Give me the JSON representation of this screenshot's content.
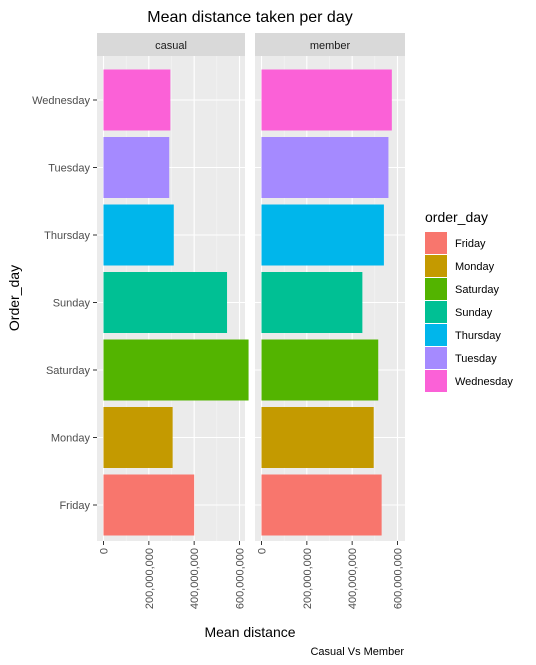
{
  "chart_data": {
    "type": "bar",
    "orientation": "horizontal",
    "title": "Mean distance taken per day",
    "xlabel": "Mean distance",
    "ylabel": "Order_day",
    "caption": "Casual Vs Member",
    "xlim": [
      0,
      650000000
    ],
    "x_ticks": [
      0,
      200000000,
      400000000,
      600000000
    ],
    "x_tick_labels": [
      "0",
      "200,000,000",
      "400,000,000",
      "600,000,000"
    ],
    "categories": [
      "Friday",
      "Monday",
      "Saturday",
      "Sunday",
      "Thursday",
      "Tuesday",
      "Wednesday"
    ],
    "facets": [
      {
        "name": "casual",
        "values": {
          "Friday": 400000000,
          "Monday": 305000000,
          "Saturday": 640000000,
          "Sunday": 545000000,
          "Thursday": 310000000,
          "Tuesday": 290000000,
          "Wednesday": 295000000
        }
      },
      {
        "name": "member",
        "values": {
          "Friday": 530000000,
          "Monday": 495000000,
          "Saturday": 515000000,
          "Sunday": 445000000,
          "Thursday": 540000000,
          "Tuesday": 560000000,
          "Wednesday": 575000000
        }
      }
    ],
    "legend": {
      "title": "order_day",
      "placement": "right",
      "entries": [
        {
          "label": "Friday",
          "color": "#F8766D"
        },
        {
          "label": "Monday",
          "color": "#C49A00"
        },
        {
          "label": "Saturday",
          "color": "#53B400"
        },
        {
          "label": "Sunday",
          "color": "#00C094"
        },
        {
          "label": "Thursday",
          "color": "#00B6EB"
        },
        {
          "label": "Tuesday",
          "color": "#A58AFF"
        },
        {
          "label": "Wednesday",
          "color": "#FB61D7"
        }
      ]
    },
    "grid": true,
    "colors": {
      "panel_bg": "#EBEBEB",
      "strip_bg": "#D9D9D9",
      "grid_major": "#FFFFFF",
      "axis_text": "#4D4D4D"
    }
  }
}
